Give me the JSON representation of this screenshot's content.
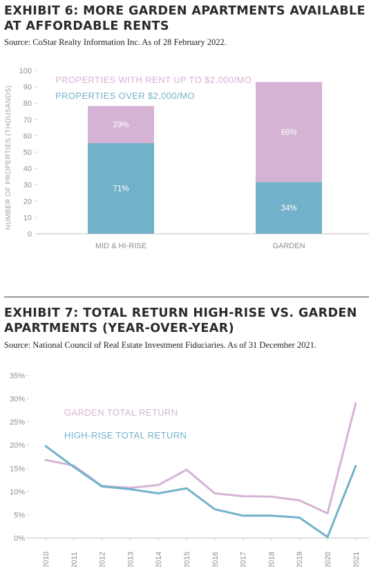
{
  "exhibit6": {
    "title": "EXHIBIT 6: MORE GARDEN APARTMENTS AVAILABLE AT AFFORDABLE RENTS",
    "source": "Source: CoStar Realty Information Inc. As of 28 February 2022.",
    "colors": {
      "affordable": "#d5b3d5",
      "over": "#72b1ca"
    },
    "chart_data": {
      "type": "bar",
      "stacked": true,
      "categories": [
        "MID & HI-RISE",
        "GARDEN"
      ],
      "series": [
        {
          "name": "PROPERTIES OVER $2,000/MO",
          "values": [
            55.5,
            31.6
          ],
          "labels": [
            "71%",
            "34%"
          ]
        },
        {
          "name": "PROPERTIES WITH RENT UP TO $2,000/MO",
          "values": [
            22.7,
            61.4
          ],
          "labels": [
            "29%",
            "66%"
          ]
        }
      ],
      "xlabel": "",
      "ylabel": "NUMBER OF PROPERTIES (THOUSANDS)",
      "ylim": [
        0,
        100
      ],
      "yticks": [
        "0",
        "10",
        "20",
        "30",
        "40",
        "50",
        "60",
        "70",
        "80",
        "90",
        "100"
      ],
      "legend": [
        {
          "label": "PROPERTIES WITH RENT UP TO $2,000/MO",
          "color": "#d5b3d5"
        },
        {
          "label": "PROPERTIES OVER $2,000/MO",
          "color": "#72b1ca"
        }
      ],
      "grid": false,
      "legend_position": "top-left"
    }
  },
  "exhibit7": {
    "title": "EXHIBIT 7: TOTAL RETURN HIGH-RISE VS. GARDEN APARTMENTS (YEAR-OVER-YEAR)",
    "source": "Source: National Council of Real Estate Investment Fiduciaries. As of 31 December 2021.",
    "colors": {
      "garden": "#d5b3d5",
      "highrise": "#72b1ca"
    },
    "chart_data": {
      "type": "line",
      "x": [
        "2010",
        "2011",
        "2012",
        "2013",
        "2014",
        "2015",
        "2016",
        "2017",
        "2018",
        "2019",
        "2020",
        "2021"
      ],
      "series": [
        {
          "name": "GARDEN TOTAL RETURN",
          "values": [
            16.8,
            15.6,
            11.2,
            10.8,
            11.4,
            14.7,
            9.6,
            9.0,
            8.9,
            8.1,
            5.3,
            29.0
          ]
        },
        {
          "name": "HIGH-RISE TOTAL RETURN",
          "values": [
            19.8,
            15.3,
            11.1,
            10.5,
            9.6,
            10.7,
            6.2,
            4.8,
            4.8,
            4.4,
            0.2,
            15.5
          ]
        }
      ],
      "xlabel": "",
      "ylabel": "",
      "ylim": [
        0,
        35
      ],
      "yticks": [
        "0%",
        "5%",
        "10%",
        "15%",
        "20%",
        "25%",
        "30%",
        "35%"
      ],
      "legend": [
        {
          "label": "GARDEN TOTAL RETURN",
          "color": "#d5b3d5"
        },
        {
          "label": "HIGH-RISE TOTAL RETURN",
          "color": "#72b1ca"
        }
      ],
      "grid": false,
      "legend_position": "top-left"
    }
  }
}
